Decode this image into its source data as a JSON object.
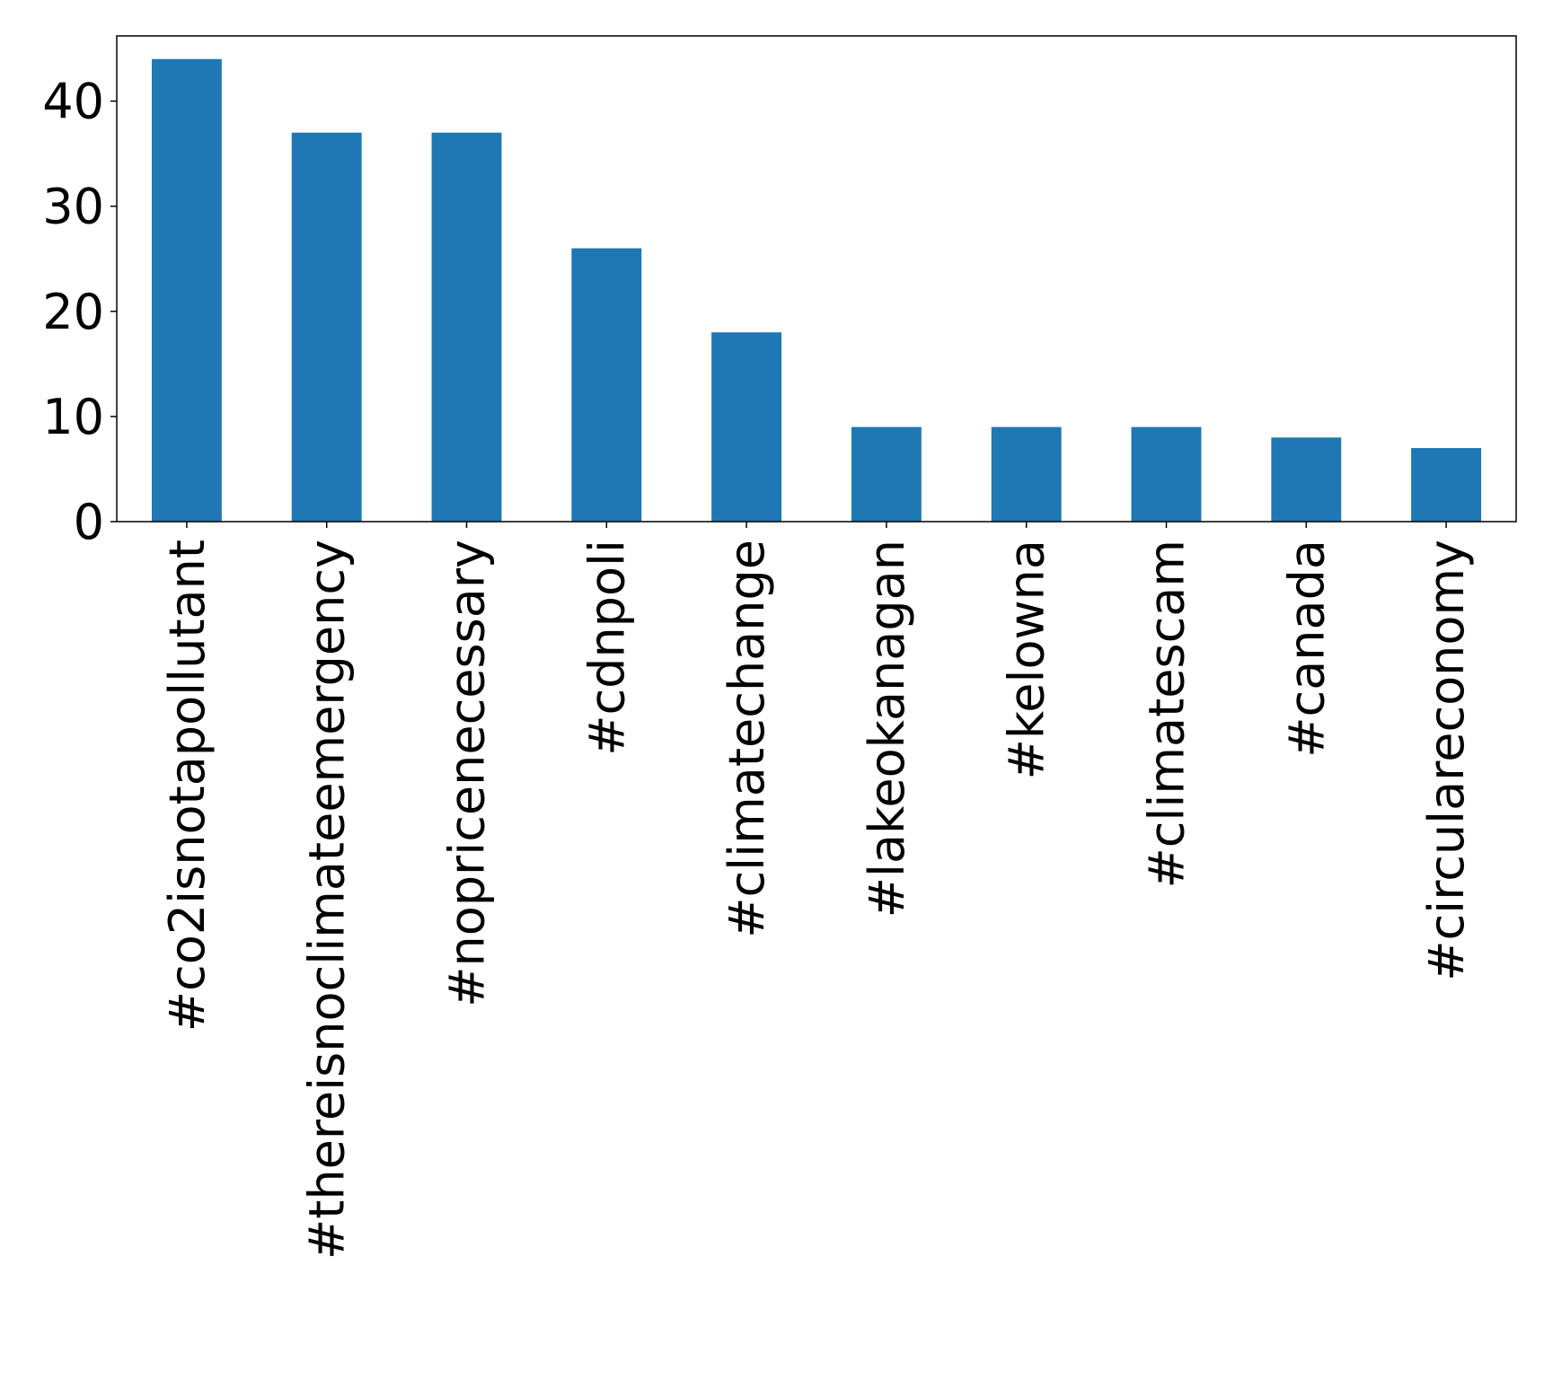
{
  "chart_data": {
    "type": "bar",
    "categories": [
      "#co2isnotapollutant",
      "#thereisnoclimateemergency",
      "#nopricenecessary",
      "#cdnpoli",
      "#climatechange",
      "#lakeokanagan",
      "#kelowna",
      "#climatescam",
      "#canada",
      "#circulareconomy"
    ],
    "values": [
      44,
      37,
      37,
      26,
      18,
      9,
      9,
      9,
      8,
      7
    ],
    "title": "",
    "xlabel": "",
    "ylabel": "",
    "ylim": [
      0,
      46.2
    ],
    "yticks": [
      0,
      10,
      20,
      30,
      40
    ],
    "grid": false,
    "bar_color": "#1f77b4"
  }
}
